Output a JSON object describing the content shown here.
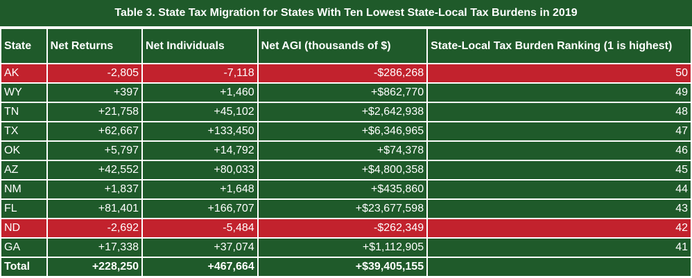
{
  "title": "Table 3. State Tax Migration for States With Ten Lowest State-Local Tax Burdens in 2019",
  "colors": {
    "green": "#1f5a2a",
    "red": "#c2222d"
  },
  "headers": [
    "State",
    "Net Returns",
    "Net Individuals",
    "Net AGI (thousands of $)",
    "State-Local Tax Burden Ranking (1 is highest)"
  ],
  "rows": [
    {
      "state": "AK",
      "returns": "-2,805",
      "individuals": "-7,118",
      "agi": "-$286,268",
      "rank": "50",
      "negative": true
    },
    {
      "state": "WY",
      "returns": "+397",
      "individuals": "+1,460",
      "agi": "+$862,770",
      "rank": "49",
      "negative": false
    },
    {
      "state": "TN",
      "returns": "+21,758",
      "individuals": "+45,102",
      "agi": "+$2,642,938",
      "rank": "48",
      "negative": false
    },
    {
      "state": "TX",
      "returns": "+62,667",
      "individuals": "+133,450",
      "agi": "+$6,346,965",
      "rank": "47",
      "negative": false
    },
    {
      "state": "OK",
      "returns": "+5,797",
      "individuals": "+14,792",
      "agi": "+$74,378",
      "rank": "46",
      "negative": false
    },
    {
      "state": "AZ",
      "returns": "+42,552",
      "individuals": "+80,033",
      "agi": "+$4,800,358",
      "rank": "45",
      "negative": false
    },
    {
      "state": "NM",
      "returns": "+1,837",
      "individuals": "+1,648",
      "agi": "+$435,860",
      "rank": "44",
      "negative": false
    },
    {
      "state": "FL",
      "returns": "+81,401",
      "individuals": "+166,707",
      "agi": "+$23,677,598",
      "rank": "43",
      "negative": false
    },
    {
      "state": "ND",
      "returns": "-2,692",
      "individuals": "-5,484",
      "agi": "-$262,349",
      "rank": "42",
      "negative": true
    },
    {
      "state": "GA",
      "returns": "+17,338",
      "individuals": "+37,074",
      "agi": "+$1,112,905",
      "rank": "41",
      "negative": false
    }
  ],
  "total": {
    "label": "Total",
    "returns": "+228,250",
    "individuals": "+467,664",
    "agi": "+$39,405,155",
    "rank": ""
  }
}
